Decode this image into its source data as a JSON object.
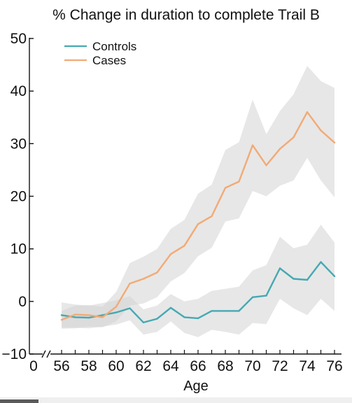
{
  "chart_data": {
    "type": "line",
    "title": "% Change in duration to complete Trail B",
    "xlabel": "Age",
    "ylabel": "",
    "xlim": [
      56,
      76
    ],
    "ylim": [
      -10,
      50
    ],
    "x_axis_break": true,
    "x_axis_zero_label": "0",
    "x": [
      56,
      57,
      58,
      59,
      60,
      61,
      62,
      63,
      64,
      65,
      66,
      67,
      68,
      69,
      70,
      71,
      72,
      73,
      74,
      75,
      76
    ],
    "xticks": [
      "56",
      "58",
      "60",
      "62",
      "64",
      "66",
      "68",
      "70",
      "72",
      "74",
      "76"
    ],
    "yticks": [
      "−10",
      "0",
      "10",
      "20",
      "30",
      "40",
      "50"
    ],
    "grid": false,
    "legend_position": "top-left",
    "series": [
      {
        "name": "Controls",
        "color": "#45a9b2",
        "values": [
          -2.6,
          -3.0,
          -3.1,
          -2.6,
          -2.1,
          -1.3,
          -4.0,
          -3.3,
          -1.2,
          -3.0,
          -3.2,
          -1.8,
          -1.8,
          -1.8,
          0.8,
          1.1,
          6.3,
          4.3,
          4.1,
          7.5,
          4.8
        ],
        "ci_lower": [
          -5.0,
          -5.0,
          -5.1,
          -4.8,
          -4.4,
          -3.6,
          -6.3,
          -5.8,
          -3.8,
          -6.0,
          -6.8,
          -5.4,
          -5.8,
          -6.3,
          -4.1,
          -4.3,
          0.5,
          -1.3,
          -2.6,
          0.5,
          -1.8
        ],
        "ci_upper": [
          -0.2,
          -0.6,
          -0.8,
          -0.3,
          0.2,
          1.0,
          -1.5,
          -0.8,
          1.4,
          0.0,
          0.5,
          2.0,
          2.4,
          2.8,
          5.9,
          6.9,
          12.3,
          10.1,
          10.8,
          14.6,
          11.2
        ]
      },
      {
        "name": "Cases",
        "color": "#f2aa76",
        "values": [
          -3.5,
          -2.5,
          -2.6,
          -3.0,
          -1.0,
          3.4,
          4.3,
          5.5,
          9.0,
          10.6,
          14.7,
          16.2,
          21.6,
          22.8,
          29.7,
          25.9,
          29.0,
          31.2,
          36.0,
          32.5,
          30.2
        ],
        "ci_lower": [
          -5.2,
          -5.1,
          -4.8,
          -4.9,
          -3.8,
          -0.8,
          -0.4,
          0.8,
          3.8,
          5.4,
          8.6,
          10.2,
          15.2,
          15.8,
          21.0,
          20.0,
          22.0,
          23.0,
          27.3,
          23.0,
          19.8
        ],
        "ci_upper": [
          -1.8,
          -0.8,
          -0.7,
          -1.0,
          1.8,
          7.3,
          8.5,
          10.0,
          13.8,
          15.5,
          20.5,
          22.2,
          28.8,
          30.3,
          38.4,
          31.8,
          36.2,
          39.4,
          44.8,
          41.9,
          40.6
        ]
      }
    ],
    "ci_band_color": "#d3d3d3"
  }
}
